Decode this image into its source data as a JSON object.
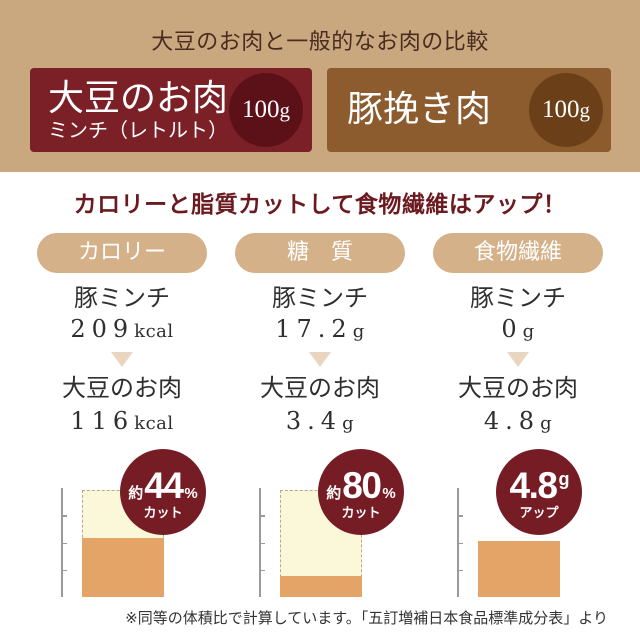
{
  "header": {
    "title": "大豆のお肉と一般的なお肉の比較"
  },
  "products": {
    "soy": {
      "name": "大豆のお肉",
      "subtitle": "ミンチ（レトルト）",
      "amount_value": "100",
      "amount_unit": "g"
    },
    "pork": {
      "name": "豚挽き肉",
      "amount_value": "100",
      "amount_unit": "g"
    }
  },
  "headline": "カロリーと脂質カットして食物繊維はアップ！",
  "comparisons": [
    {
      "label": "カロリー",
      "pork": {
        "name": "豚ミンチ",
        "value": "209",
        "unit": "kcal"
      },
      "soy": {
        "name": "大豆のお肉",
        "value": "116",
        "unit": "kcal"
      },
      "badge": {
        "prefix": "約",
        "value": "44",
        "suffix": "%",
        "caption": "カット"
      },
      "chart": {
        "reference_level": 1,
        "bar_level": 0.555
      }
    },
    {
      "label": "糖　質",
      "pork": {
        "name": "豚ミンチ",
        "value": "17.2",
        "unit": "g"
      },
      "soy": {
        "name": "大豆のお肉",
        "value": "3.4",
        "unit": "g"
      },
      "badge": {
        "prefix": "約",
        "value": "80",
        "suffix": "%",
        "caption": "カット"
      },
      "chart": {
        "reference_level": 1,
        "bar_level": 0.198
      }
    },
    {
      "label": "食物繊維",
      "pork": {
        "name": "豚ミンチ",
        "value": "0",
        "unit": "g"
      },
      "soy": {
        "name": "大豆のお肉",
        "value": "4.8",
        "unit": "g"
      },
      "badge": {
        "value": "4.8",
        "suffix": "g",
        "caption": "アップ"
      },
      "chart": {
        "reference_level": 0,
        "bar_level": 0.52
      }
    }
  ],
  "footnote": "※同等の体積比で計算しています。「五訂増補日本食品標準成分表」より",
  "colors": {
    "header_band": "#c9a880",
    "soy_card": "#7b2027",
    "soy_badge": "#5c1118",
    "pork_card": "#8c5b2e",
    "pork_badge": "#6b4018",
    "headline_text": "#6b1b20",
    "pill": "#d4b189",
    "arrow": "#ead5c0",
    "accent_badge": "#761c24",
    "bar_fill": "#e4a467",
    "reference_fill": "#fbf8da"
  }
}
